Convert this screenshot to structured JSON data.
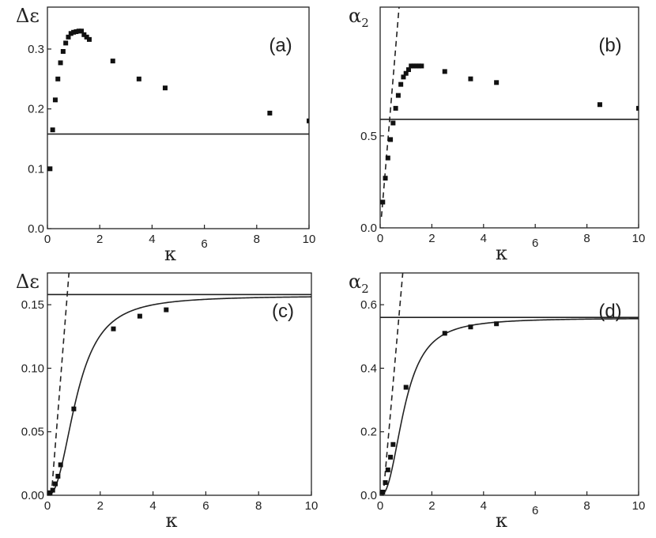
{
  "chart_data": [
    {
      "type": "scatter",
      "panel_label": "(a)",
      "xlabel": "κ",
      "ylabel": "Δε",
      "ylabel_sub": "",
      "xlim": [
        0,
        10
      ],
      "ylim": [
        0,
        0.37
      ],
      "x_ticks": [
        0,
        2,
        4,
        6,
        8,
        10
      ],
      "x_tick_labels": [
        "0",
        "2",
        "4",
        "",
        "8",
        "10"
      ],
      "xlabel_superscript": "6",
      "y_ticks": [
        0,
        0.1,
        0.2,
        0.3
      ],
      "y_tick_labels": [
        "0.0",
        "0.1",
        "0.2",
        "0.3"
      ],
      "hline": 0.158,
      "points": {
        "x": [
          0.1,
          0.2,
          0.3,
          0.4,
          0.5,
          0.6,
          0.7,
          0.8,
          0.9,
          1.0,
          1.1,
          1.2,
          1.3,
          1.4,
          1.5,
          1.6,
          2.5,
          3.5,
          4.5,
          8.5,
          10.0
        ],
        "y": [
          0.1,
          0.165,
          0.215,
          0.25,
          0.277,
          0.296,
          0.31,
          0.32,
          0.326,
          0.328,
          0.329,
          0.33,
          0.33,
          0.324,
          0.32,
          0.316,
          0.28,
          0.25,
          0.235,
          0.193,
          0.18
        ]
      },
      "curve": null,
      "dashed_line": null
    },
    {
      "type": "scatter",
      "panel_label": "(b)",
      "xlabel": "κ",
      "ylabel": "α",
      "ylabel_sub": "2",
      "xlim": [
        0,
        10
      ],
      "ylim": [
        0,
        1.2
      ],
      "x_ticks": [
        0,
        2,
        4,
        6,
        8,
        10
      ],
      "x_tick_labels": [
        "0",
        "2",
        "4",
        "",
        "8",
        "10"
      ],
      "xlabel_superscript": "6",
      "y_ticks": [
        0,
        0.5
      ],
      "y_tick_labels": [
        "0.0",
        "0.5"
      ],
      "hline": 0.59,
      "points": {
        "x": [
          0.1,
          0.2,
          0.3,
          0.4,
          0.5,
          0.6,
          0.7,
          0.8,
          0.9,
          1.0,
          1.1,
          1.2,
          1.3,
          1.4,
          1.5,
          1.6,
          2.5,
          3.5,
          4.5,
          8.5,
          10.0
        ],
        "y": [
          0.14,
          0.27,
          0.38,
          0.48,
          0.57,
          0.65,
          0.72,
          0.78,
          0.82,
          0.84,
          0.86,
          0.88,
          0.88,
          0.88,
          0.88,
          0.88,
          0.85,
          0.81,
          0.79,
          0.67,
          0.65
        ]
      },
      "curve": null,
      "dashed_line": {
        "x": [
          0.05,
          0.75
        ],
        "y": [
          0.06,
          1.23
        ]
      }
    },
    {
      "type": "scatter",
      "panel_label": "(c)",
      "xlabel": "κ",
      "ylabel": "Δε",
      "ylabel_sub": "",
      "xlim": [
        0,
        10
      ],
      "ylim": [
        0,
        0.175
      ],
      "x_ticks": [
        0,
        2,
        4,
        6,
        8,
        10
      ],
      "x_tick_labels": [
        "0",
        "2",
        "4",
        "6",
        "8",
        "10"
      ],
      "xlabel_superscript": "",
      "y_ticks": [
        0,
        0.05,
        0.1,
        0.15
      ],
      "y_tick_labels": [
        "0.00",
        "0.05",
        "0.10",
        "0.15"
      ],
      "hline": 0.158,
      "points": {
        "x": [
          0.1,
          0.2,
          0.3,
          0.4,
          0.5,
          1.0,
          2.5,
          3.5,
          4.5
        ],
        "y": [
          0.002,
          0.004,
          0.009,
          0.015,
          0.024,
          0.068,
          0.131,
          0.141,
          0.146
        ]
      },
      "curve": {
        "formula": "saturating-sigmoid",
        "x_range": [
          0.05,
          10
        ],
        "y_max": 0.157,
        "x_scale": 1.12,
        "power": 2.4
      },
      "dashed_line": {
        "x": [
          0.15,
          0.82
        ],
        "y": [
          0.0,
          0.176
        ]
      }
    },
    {
      "type": "scatter",
      "panel_label": "(d)",
      "xlabel": "κ",
      "ylabel": "α",
      "ylabel_sub": "2",
      "xlim": [
        0,
        10
      ],
      "ylim": [
        0,
        0.7
      ],
      "x_ticks": [
        0,
        2,
        4,
        6,
        8,
        10
      ],
      "x_tick_labels": [
        "0",
        "2",
        "4",
        "",
        "8",
        "10"
      ],
      "xlabel_superscript": "6",
      "y_ticks": [
        0,
        0.2,
        0.4,
        0.6
      ],
      "y_tick_labels": [
        "0.0",
        "0.2",
        "0.4",
        "0.6"
      ],
      "hline": 0.56,
      "points": {
        "x": [
          0.1,
          0.2,
          0.3,
          0.4,
          0.5,
          1.0,
          2.5,
          3.5,
          4.5
        ],
        "y": [
          0.01,
          0.04,
          0.08,
          0.12,
          0.16,
          0.34,
          0.51,
          0.53,
          0.54
        ]
      },
      "curve": {
        "formula": "saturating-sigmoid",
        "x_range": [
          0.05,
          10
        ],
        "y_max": 0.558,
        "x_scale": 0.95,
        "power": 2.4
      },
      "dashed_line": {
        "x": [
          0.12,
          0.88
        ],
        "y": [
          0.0,
          0.705
        ]
      }
    }
  ]
}
